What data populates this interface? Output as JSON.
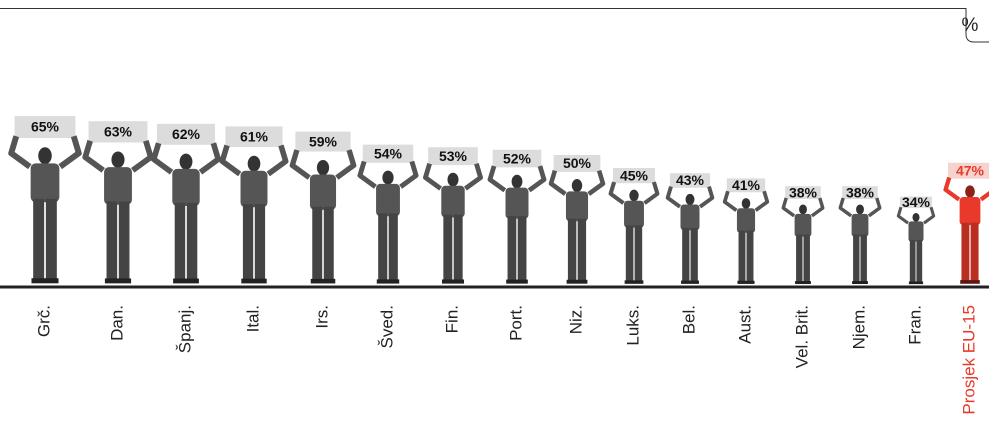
{
  "chart_data": {
    "type": "pictogram",
    "unit": "%",
    "categories": [
      "Grč.",
      "Dan.",
      "Španj.",
      "Ital.",
      "Irs.",
      "Šved.",
      "Fin.",
      "Port.",
      "Niz.",
      "Luks.",
      "Bel.",
      "Aust.",
      "Vel. Brit.",
      "Njem.",
      "Fran.",
      "Prosjek EU-15"
    ],
    "values": [
      65,
      63,
      62,
      61,
      59,
      54,
      53,
      52,
      50,
      45,
      43,
      41,
      38,
      38,
      34,
      47
    ],
    "value_labels": [
      "65%",
      "63%",
      "62%",
      "61%",
      "59%",
      "54%",
      "53%",
      "52%",
      "50%",
      "45%",
      "43%",
      "41%",
      "38%",
      "38%",
      "34%",
      "47%"
    ],
    "colors": [
      "#555555",
      "#555555",
      "#555555",
      "#555555",
      "#555555",
      "#555555",
      "#555555",
      "#555555",
      "#555555",
      "#555555",
      "#555555",
      "#555555",
      "#555555",
      "#555555",
      "#555555",
      "#e8392b"
    ]
  }
}
